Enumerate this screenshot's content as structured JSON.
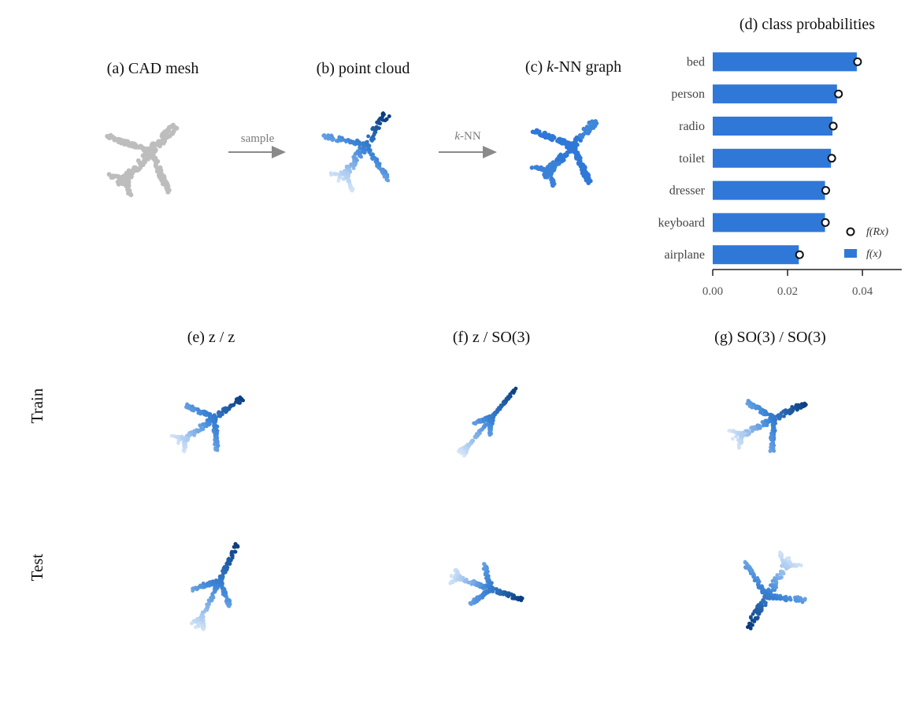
{
  "panels": {
    "a": "(a) CAD mesh",
    "b": "(b) point cloud",
    "c_prefix": "(c) ",
    "c_italic": "k",
    "c_suffix": "-NN graph",
    "d": "(d) class probabilities",
    "e": "(e) z / z",
    "f": "(f) z / SO(3)",
    "g": "(g) SO(3) / SO(3)"
  },
  "arrows": {
    "sample": "sample",
    "knn_italic": "k",
    "knn_suffix": "-NN"
  },
  "rows": {
    "train": "Train",
    "test": "Test"
  },
  "colors": {
    "bar": "#2f78d8",
    "mesh": "#bdbdbd",
    "dark": "#0b3d7e",
    "mid": "#3e86d9",
    "light": "#dbe9fa",
    "arrow": "#8a8a8a"
  },
  "chart_data": {
    "type": "bar",
    "orientation": "horizontal",
    "title": "(d) class probabilities",
    "categories": [
      "bed",
      "person",
      "radio",
      "toilet",
      "dresser",
      "keyboard",
      "airplane"
    ],
    "series": [
      {
        "name": "f(x)",
        "values": [
          0.0385,
          0.0332,
          0.032,
          0.0316,
          0.03,
          0.03,
          0.023
        ]
      },
      {
        "name": "f(Rx)",
        "values": [
          0.0387,
          0.0336,
          0.0322,
          0.0318,
          0.0302,
          0.0301,
          0.0232
        ]
      }
    ],
    "xticks": [
      "0.00",
      "0.02",
      "0.04"
    ],
    "xtick_values": [
      0,
      0.02,
      0.04
    ],
    "xlim": [
      0,
      0.0505
    ],
    "legend_placement": "bottom-right",
    "legend": {
      "dot_prefix": "f(",
      "dot_mid": "Rx",
      "dot_suffix": ")",
      "bar_label": "f(x)"
    }
  }
}
